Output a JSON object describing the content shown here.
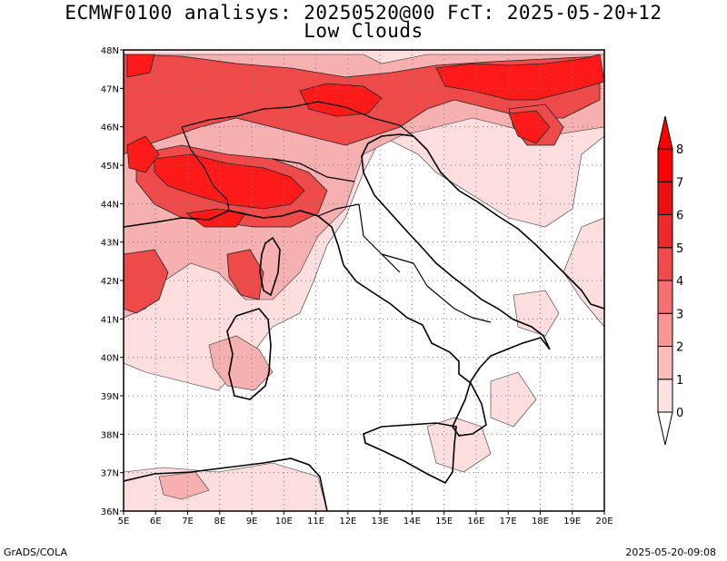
{
  "title_line1": "ECMWF0100 analisys: 20250520@00 FcT: 2025-05-20+12",
  "title_line2": "Low Clouds",
  "footer_left": "GrADS/COLA",
  "footer_right": "2025-05-20-09:08",
  "map": {
    "lon_range": [
      5,
      20
    ],
    "lat_range": [
      36,
      48
    ],
    "lon_ticks": [
      "5E",
      "6E",
      "7E",
      "8E",
      "9E",
      "10E",
      "11E",
      "12E",
      "13E",
      "14E",
      "15E",
      "16E",
      "17E",
      "18E",
      "19E",
      "20E"
    ],
    "lat_ticks": [
      "36N",
      "37N",
      "38N",
      "39N",
      "40N",
      "41N",
      "42N",
      "43N",
      "44N",
      "45N",
      "46N",
      "47N",
      "48N"
    ],
    "grid": "dotted"
  },
  "colorbar": {
    "labels": [
      "0",
      "1",
      "2",
      "3",
      "4",
      "5",
      "6",
      "7",
      "8"
    ],
    "colors": [
      "#ffffff",
      "#fde0e0",
      "#fbbcbc",
      "#f89696",
      "#f57070",
      "#f04a4a",
      "#ec2a2a",
      "#e81010",
      "#ff0000"
    ]
  },
  "cloud_colors": {
    "light": "#fcdede",
    "medium": "#f7b0b0",
    "dark": "#ee4a4a",
    "max": "#ff1a1a"
  }
}
